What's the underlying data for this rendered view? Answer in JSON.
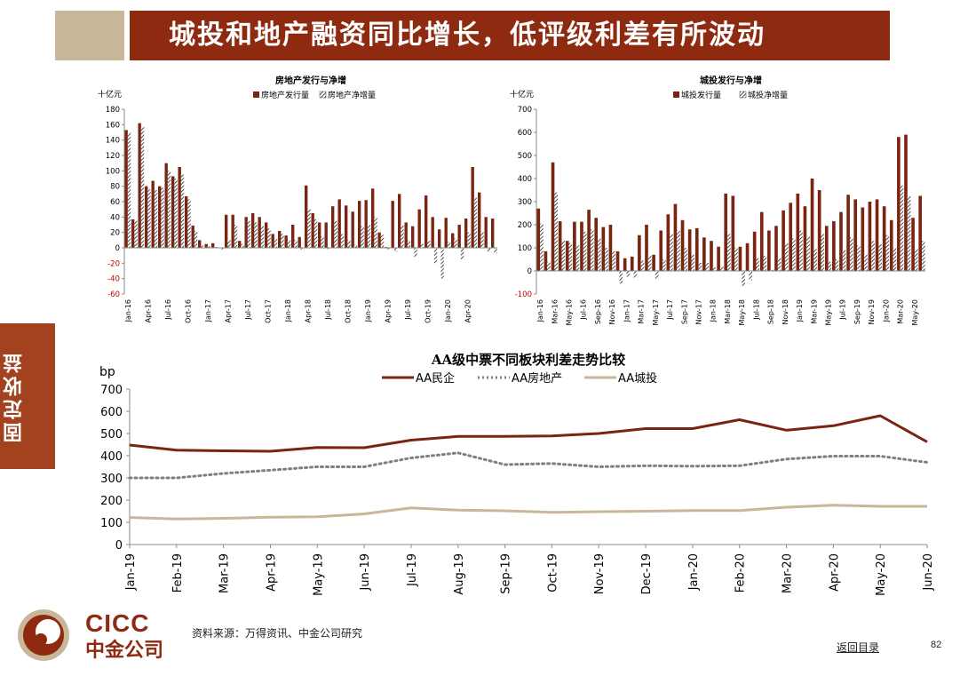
{
  "header": {
    "title": "城投和地产融资同比增长，低评级利差有所波动"
  },
  "side_tab": {
    "label": "固定收益"
  },
  "colors": {
    "brown": "#7a2511",
    "tan": "#c9b79a",
    "grey": "#7f7f7f"
  },
  "chart_data": [
    {
      "type": "bar",
      "title": "房地产发行与净增",
      "ylabel": "十亿元",
      "ylim": [
        -60,
        180
      ],
      "yticks": [
        -60,
        -40,
        -20,
        0,
        20,
        40,
        60,
        80,
        100,
        120,
        140,
        160,
        180
      ],
      "legend_position": "top",
      "xtick_labels": [
        "Jan-16",
        "Apr-16",
        "Jul-16",
        "Oct-16",
        "Jan-17",
        "Apr-17",
        "Jul-17",
        "Oct-17",
        "Jan-18",
        "Apr-18",
        "Jul-18",
        "Oct-18",
        "Jan-19",
        "Apr-19",
        "Jul-19",
        "Oct-19",
        "Jan-20",
        "Apr-20"
      ],
      "xtick_every": 3,
      "series": [
        {
          "name": "房地产发行量",
          "style": "solid",
          "values": [
            153,
            37,
            162,
            80,
            87,
            80,
            110,
            93,
            105,
            67,
            29,
            10,
            5,
            6,
            0,
            43,
            43,
            9,
            40,
            45,
            40,
            33,
            18,
            22,
            16,
            30,
            14,
            81,
            45,
            33,
            33,
            54,
            63,
            55,
            47,
            61,
            62,
            77,
            20,
            1,
            61,
            70,
            33,
            28,
            50,
            68,
            40,
            24,
            39,
            19,
            30,
            38,
            105,
            72,
            40,
            38
          ]
        },
        {
          "name": "房地产净增量",
          "style": "hatched",
          "values": [
            150,
            35,
            157,
            76,
            75,
            78,
            100,
            90,
            95,
            63,
            22,
            3,
            2,
            1,
            -2,
            10,
            30,
            5,
            35,
            33,
            28,
            25,
            12,
            18,
            10,
            10,
            -3,
            50,
            37,
            15,
            -2,
            35,
            18,
            10,
            4,
            28,
            30,
            40,
            17,
            -2,
            -5,
            29,
            10,
            -12,
            5,
            9,
            -20,
            -40,
            8,
            12,
            -15,
            20,
            65,
            20,
            -5,
            -7
          ]
        }
      ]
    },
    {
      "type": "bar",
      "title": "城投发行与净增",
      "ylabel": "十亿元",
      "ylim": [
        -100,
        700
      ],
      "yticks": [
        -100,
        0,
        100,
        200,
        300,
        400,
        500,
        600,
        700
      ],
      "legend_position": "top",
      "xtick_labels": [
        "Jan-16",
        "Mar-16",
        "May-16",
        "Jul-16",
        "Sep-16",
        "Nov-16",
        "Jan-17",
        "Mar-17",
        "May-17",
        "Jul-17",
        "Sep-17",
        "Nov-17",
        "Jan-18",
        "Mar-18",
        "May-18",
        "Jul-18",
        "Sep-18",
        "Nov-18",
        "Jan-19",
        "Mar-19",
        "May-19",
        "Jul-19",
        "Sep-19",
        "Nov-19",
        "Jan-20",
        "Mar-20",
        "May-20"
      ],
      "xtick_every": 2,
      "series": [
        {
          "name": "城投发行量",
          "style": "solid",
          "values": [
            270,
            85,
            470,
            215,
            130,
            213,
            213,
            265,
            230,
            190,
            200,
            85,
            55,
            62,
            155,
            200,
            70,
            175,
            245,
            290,
            220,
            180,
            185,
            145,
            130,
            105,
            335,
            325,
            105,
            120,
            170,
            255,
            175,
            195,
            262,
            295,
            335,
            280,
            400,
            350,
            195,
            215,
            255,
            330,
            310,
            275,
            300,
            310,
            280,
            220,
            580,
            590,
            230,
            325
          ]
        },
        {
          "name": "城投净增量",
          "style": "hatched",
          "values": [
            205,
            40,
            340,
            130,
            120,
            110,
            170,
            180,
            140,
            100,
            85,
            -55,
            -25,
            -30,
            45,
            65,
            -35,
            50,
            160,
            175,
            100,
            70,
            35,
            35,
            15,
            20,
            160,
            100,
            -65,
            -40,
            55,
            65,
            5,
            55,
            120,
            140,
            175,
            150,
            95,
            160,
            40,
            50,
            90,
            145,
            110,
            70,
            130,
            115,
            155,
            100,
            370,
            325,
            95,
            130
          ]
        }
      ]
    },
    {
      "type": "line",
      "title": "AA级中票不同板块利差走势比较",
      "ylabel": "bp",
      "ylim": [
        0,
        700
      ],
      "yticks": [
        0,
        100,
        200,
        300,
        400,
        500,
        600,
        700
      ],
      "legend_position": "top",
      "categories": [
        "Jan-19",
        "Feb-19",
        "Mar-19",
        "Apr-19",
        "May-19",
        "Jun-19",
        "Jul-19",
        "Aug-19",
        "Sep-19",
        "Oct-19",
        "Nov-19",
        "Dec-19",
        "Jan-20",
        "Feb-20",
        "Mar-20",
        "Apr-20",
        "May-20",
        "Jun-20"
      ],
      "series": [
        {
          "name": "AA民企",
          "style": "solid",
          "color": "#7a2511",
          "values": [
            448,
            425,
            422,
            420,
            437,
            436,
            470,
            487,
            487,
            489,
            500,
            522,
            522,
            562,
            515,
            535,
            580,
            462
          ]
        },
        {
          "name": "AA房地产",
          "style": "dotted",
          "color": "#7f7f7f",
          "values": [
            300,
            300,
            320,
            335,
            350,
            350,
            390,
            413,
            360,
            365,
            350,
            355,
            353,
            355,
            385,
            398,
            398,
            370
          ]
        },
        {
          "name": "AA城投",
          "style": "solid",
          "color": "#c9b79a",
          "values": [
            122,
            115,
            118,
            123,
            125,
            138,
            165,
            155,
            152,
            145,
            148,
            150,
            153,
            153,
            168,
            177,
            172,
            172
          ]
        }
      ]
    }
  ],
  "footer": {
    "logo_text": "CICC",
    "logo_text_cn": "中金公司",
    "source": "资料来源：万得资讯、中金公司研究",
    "back_link": "返回目录",
    "page_number": "82"
  }
}
